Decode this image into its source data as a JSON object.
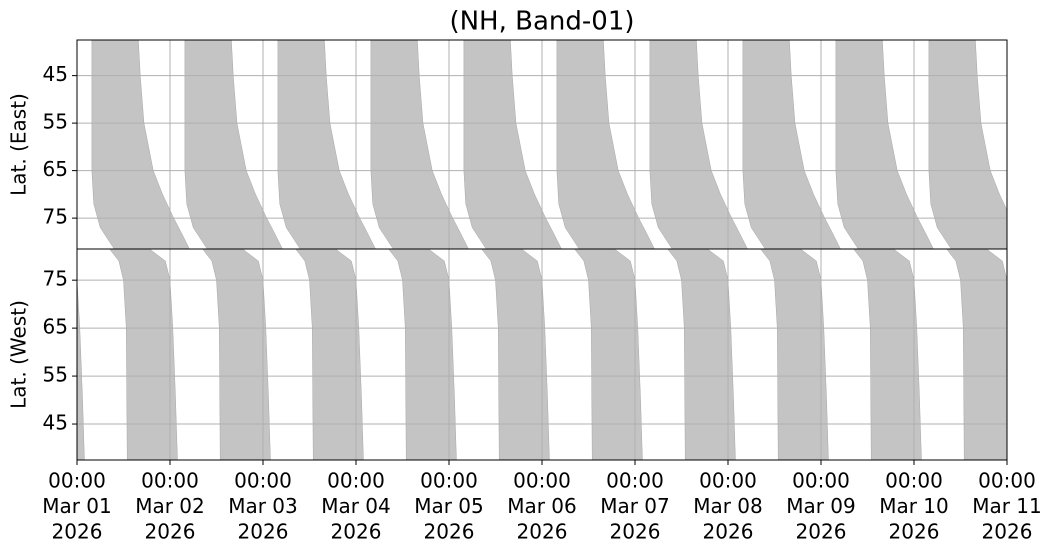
{
  "chart_data": {
    "type": "band",
    "title": "(NH, Band-01)",
    "xlim": [
      0,
      10
    ],
    "xticks": [
      {
        "value": 0,
        "label": [
          "00:00",
          "Mar 01",
          "2026"
        ]
      },
      {
        "value": 1,
        "label": [
          "00:00",
          "Mar 02",
          "2026"
        ]
      },
      {
        "value": 2,
        "label": [
          "00:00",
          "Mar 03",
          "2026"
        ]
      },
      {
        "value": 3,
        "label": [
          "00:00",
          "Mar 04",
          "2026"
        ]
      },
      {
        "value": 4,
        "label": [
          "00:00",
          "Mar 05",
          "2026"
        ]
      },
      {
        "value": 5,
        "label": [
          "00:00",
          "Mar 06",
          "2026"
        ]
      },
      {
        "value": 6,
        "label": [
          "00:00",
          "Mar 07",
          "2026"
        ]
      },
      {
        "value": 7,
        "label": [
          "00:00",
          "Mar 08",
          "2026"
        ]
      },
      {
        "value": 8,
        "label": [
          "00:00",
          "Mar 09",
          "2026"
        ]
      },
      {
        "value": 9,
        "label": [
          "00:00",
          "Mar 10",
          "2026"
        ]
      },
      {
        "value": 10,
        "label": [
          "00:00",
          "Mar 11",
          "2026"
        ]
      }
    ],
    "grid": true,
    "panels": [
      {
        "ylabel": "Lat. (East)",
        "ylim": [
          81.5,
          37.5
        ],
        "yticks": [
          45,
          55,
          65,
          75
        ],
        "color": "#c4c4c4",
        "lat": [
          37.5,
          65,
          72,
          77,
          81.5,
          81.5,
          78,
          75,
          70,
          65,
          55,
          45,
          37.5
        ],
        "bands": [
          [
            0.16,
            0.16,
            0.18,
            0.25,
            0.4,
            1.21,
            1.12,
            1.04,
            0.92,
            0.82,
            0.72,
            0.68,
            0.66
          ],
          [
            1.16,
            1.16,
            1.18,
            1.25,
            1.4,
            2.21,
            2.12,
            2.04,
            1.92,
            1.82,
            1.72,
            1.68,
            1.66
          ],
          [
            2.16,
            2.16,
            2.18,
            2.25,
            2.4,
            3.21,
            3.12,
            3.04,
            2.92,
            2.82,
            2.72,
            2.68,
            2.66
          ],
          [
            3.16,
            3.16,
            3.18,
            3.25,
            3.4,
            4.21,
            4.12,
            4.04,
            3.92,
            3.82,
            3.72,
            3.68,
            3.66
          ],
          [
            4.16,
            4.16,
            4.18,
            4.25,
            4.4,
            5.21,
            5.12,
            5.04,
            4.92,
            4.82,
            4.72,
            4.68,
            4.66
          ],
          [
            5.16,
            5.16,
            5.18,
            5.25,
            5.4,
            6.21,
            6.12,
            6.04,
            5.92,
            5.82,
            5.72,
            5.68,
            5.66
          ],
          [
            6.16,
            6.16,
            6.18,
            6.25,
            6.4,
            7.21,
            7.12,
            7.04,
            6.92,
            6.82,
            6.72,
            6.68,
            6.66
          ],
          [
            7.16,
            7.16,
            7.18,
            7.25,
            7.4,
            8.21,
            8.12,
            8.04,
            7.92,
            7.82,
            7.72,
            7.68,
            7.66
          ],
          [
            8.16,
            8.16,
            8.18,
            8.25,
            8.4,
            9.21,
            9.12,
            9.04,
            8.92,
            8.82,
            8.72,
            8.68,
            8.66
          ],
          [
            9.16,
            9.16,
            9.18,
            9.25,
            9.4,
            10.21,
            10.12,
            10.04,
            9.92,
            9.82,
            9.72,
            9.68,
            9.66
          ]
        ]
      },
      {
        "ylabel": "Lat. (West)",
        "ylim": [
          37.5,
          81.5
        ],
        "yticks": [
          45,
          55,
          65,
          75
        ],
        "color": "#c4c4c4",
        "lat": [
          81.5,
          79,
          75,
          65,
          37.5,
          37.5,
          50,
          65,
          75,
          79,
          81.5
        ],
        "bands": [
          [
            -0.65,
            -0.55,
            -0.5,
            -0.47,
            -0.46,
            0.08,
            0.06,
            0.03,
            0.0,
            -0.05,
            -0.22
          ],
          [
            0.35,
            0.45,
            0.5,
            0.53,
            0.54,
            1.08,
            1.06,
            1.03,
            1.0,
            0.95,
            0.78
          ],
          [
            1.35,
            1.45,
            1.5,
            1.53,
            1.54,
            2.08,
            2.06,
            2.03,
            2.0,
            1.95,
            1.78
          ],
          [
            2.35,
            2.45,
            2.5,
            2.53,
            2.54,
            3.08,
            3.06,
            3.03,
            3.0,
            2.95,
            2.78
          ],
          [
            3.35,
            3.45,
            3.5,
            3.53,
            3.54,
            4.08,
            4.06,
            4.03,
            4.0,
            3.95,
            3.78
          ],
          [
            4.35,
            4.45,
            4.5,
            4.53,
            4.54,
            5.08,
            5.06,
            5.03,
            5.0,
            4.95,
            4.78
          ],
          [
            5.35,
            5.45,
            5.5,
            5.53,
            5.54,
            6.08,
            6.06,
            6.03,
            6.0,
            5.95,
            5.78
          ],
          [
            6.35,
            6.45,
            6.5,
            6.53,
            6.54,
            7.08,
            7.06,
            7.03,
            7.0,
            6.95,
            6.78
          ],
          [
            7.35,
            7.45,
            7.5,
            7.53,
            7.54,
            8.08,
            8.06,
            8.03,
            8.0,
            7.95,
            7.78
          ],
          [
            8.35,
            8.45,
            8.5,
            8.53,
            8.54,
            9.08,
            9.06,
            9.03,
            9.0,
            8.95,
            8.78
          ],
          [
            9.35,
            9.45,
            9.5,
            9.53,
            9.54,
            10.08,
            10.06,
            10.03,
            10.0,
            9.95,
            9.78
          ]
        ]
      }
    ]
  }
}
